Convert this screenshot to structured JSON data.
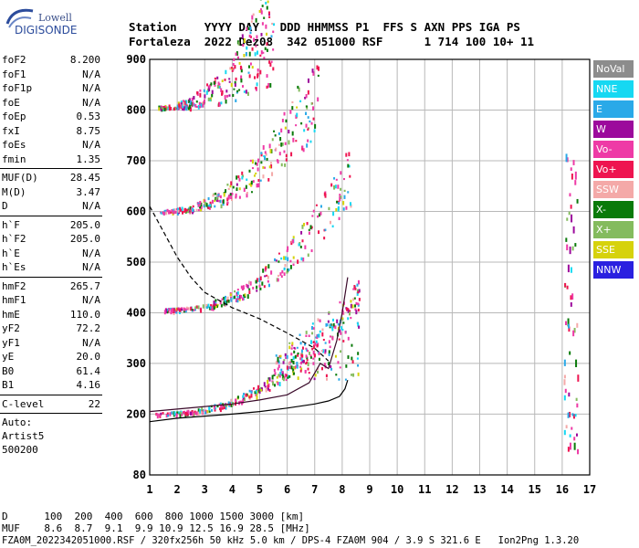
{
  "logo": {
    "line1": "Lowell",
    "line2": "DIGISONDE"
  },
  "header": {
    "line1": "Station    YYYY DAY   DDD HHMMSS P1  FFS S AXN PPS IGA PS",
    "line2": "Fortaleza  2022 Dez08  342 051000 RSF      1 714 100 10+ 11"
  },
  "params": {
    "group1": [
      {
        "label": "foF2",
        "value": "8.200"
      },
      {
        "label": "foF1",
        "value": "N/A"
      },
      {
        "label": "foF1p",
        "value": "N/A"
      },
      {
        "label": "foE",
        "value": "N/A"
      },
      {
        "label": "foEp",
        "value": "0.53"
      },
      {
        "label": "fxI",
        "value": "8.75"
      },
      {
        "label": "foEs",
        "value": "N/A"
      },
      {
        "label": "fmin",
        "value": "1.35"
      }
    ],
    "group2": [
      {
        "label": "MUF(D)",
        "value": "28.45"
      },
      {
        "label": "M(D)",
        "value": "3.47"
      },
      {
        "label": "D",
        "value": "N/A"
      }
    ],
    "group3": [
      {
        "label": "h`F",
        "value": "205.0"
      },
      {
        "label": "h`F2",
        "value": "205.0"
      },
      {
        "label": "h`E",
        "value": "N/A"
      },
      {
        "label": "h`Es",
        "value": "N/A"
      }
    ],
    "group4": [
      {
        "label": "hmF2",
        "value": "265.7"
      },
      {
        "label": "hmF1",
        "value": "N/A"
      },
      {
        "label": "hmE",
        "value": "110.0"
      },
      {
        "label": "yF2",
        "value": "72.2"
      },
      {
        "label": "yF1",
        "value": "N/A"
      },
      {
        "label": "yE",
        "value": "20.0"
      },
      {
        "label": "B0",
        "value": "61.4"
      },
      {
        "label": "B1",
        "value": "4.16"
      }
    ],
    "group5": [
      {
        "label": "C-level",
        "value": "22"
      }
    ],
    "footer": [
      "Auto:",
      "Artist5",
      "500200"
    ]
  },
  "legend": [
    {
      "label": "NoVal",
      "color": "#8c8c8c"
    },
    {
      "label": "NNE",
      "color": "#16d8f2"
    },
    {
      "label": "E",
      "color": "#2aa9e8"
    },
    {
      "label": "W",
      "color": "#9c0a9c"
    },
    {
      "label": "Vo-",
      "color": "#ee3aa6"
    },
    {
      "label": "Vo+",
      "color": "#ee1450"
    },
    {
      "label": "SSW",
      "color": "#f4a9a8"
    },
    {
      "label": "X-",
      "color": "#0a7a0a"
    },
    {
      "label": "X+",
      "color": "#84bb5e"
    },
    {
      "label": "SSE",
      "color": "#d6d20c"
    },
    {
      "label": "NNW",
      "color": "#2a20e0"
    }
  ],
  "bottom": {
    "line1": "D      100  200  400  600  800 1000 1500 3000 [km]",
    "line2": "MUF    8.6  8.7  9.1  9.9 10.9 12.5 16.9 28.5 [MHz]",
    "line3": "FZA0M_2022342051000.RSF / 320fx256h 50 kHz 5.0 km / DPS-4 FZA0M 904 / 3.9 S 321.6 E   Ion2Png 1.3.20"
  },
  "chart_data": {
    "type": "scatter",
    "title": "",
    "xlabel": "",
    "ylabel": "",
    "xlim": [
      1,
      17
    ],
    "ylim": [
      80,
      900
    ],
    "x_ticks": [
      1,
      2,
      3,
      4,
      5,
      6,
      7,
      8,
      9,
      10,
      11,
      12,
      13,
      14,
      15,
      16,
      17
    ],
    "y_ticks": [
      80,
      200,
      300,
      400,
      500,
      600,
      700,
      800,
      900
    ],
    "grid": true,
    "layers": [
      {
        "name": "1st hop trace",
        "x_range": [
          1.2,
          8.6
        ],
        "h_start": 200,
        "h_end": 420,
        "mode": 1
      },
      {
        "name": "2nd hop trace",
        "x_range": [
          1.5,
          8.3
        ],
        "h_start": 405,
        "h_end": 640,
        "mode": 2
      },
      {
        "name": "3rd hop trace",
        "x_range": [
          1.3,
          7.2
        ],
        "h_start": 600,
        "h_end": 800,
        "mode": 3
      },
      {
        "name": "4th hop trace",
        "x_range": [
          1.3,
          5.5
        ],
        "h_start": 805,
        "h_end": 900,
        "mode": 4
      }
    ],
    "profile_curve": [
      [
        1.0,
        185
      ],
      [
        2.0,
        192
      ],
      [
        3.0,
        196
      ],
      [
        4.0,
        200
      ],
      [
        5.0,
        205
      ],
      [
        6.0,
        212
      ],
      [
        7.0,
        220
      ],
      [
        7.5,
        226
      ],
      [
        7.9,
        235
      ],
      [
        8.1,
        250
      ],
      [
        8.2,
        267
      ]
    ],
    "dashed_curve": [
      [
        1.0,
        610
      ],
      [
        1.5,
        560
      ],
      [
        2.0,
        510
      ],
      [
        2.5,
        470
      ],
      [
        3.0,
        440
      ],
      [
        4.0,
        410
      ],
      [
        5.0,
        388
      ],
      [
        6.0,
        360
      ],
      [
        7.0,
        330
      ],
      [
        7.5,
        305
      ]
    ],
    "trace_curve": [
      [
        1.0,
        205
      ],
      [
        2.0,
        210
      ],
      [
        3.0,
        215
      ],
      [
        4.0,
        220
      ],
      [
        5.0,
        228
      ],
      [
        6.0,
        238
      ],
      [
        6.8,
        262
      ],
      [
        7.2,
        300
      ],
      [
        7.5,
        290
      ],
      [
        7.8,
        345
      ],
      [
        8.0,
        400
      ],
      [
        8.2,
        470
      ]
    ],
    "side_strip": {
      "x": 16.3,
      "h_range": [
        130,
        720
      ]
    }
  }
}
